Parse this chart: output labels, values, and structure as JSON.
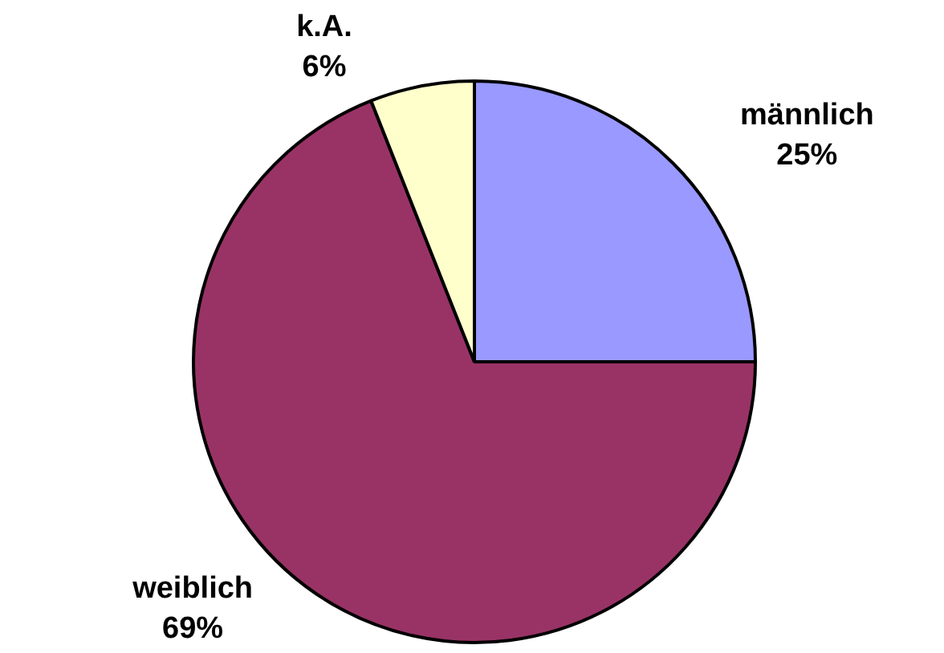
{
  "chart_data": {
    "type": "pie",
    "categories": [
      "männlich",
      "weiblich",
      "k.A."
    ],
    "values": [
      25,
      69,
      6
    ],
    "colors": [
      "#9999ff",
      "#993366",
      "#ffffcc"
    ],
    "value_labels": [
      "25%",
      "69%",
      "6%"
    ]
  }
}
